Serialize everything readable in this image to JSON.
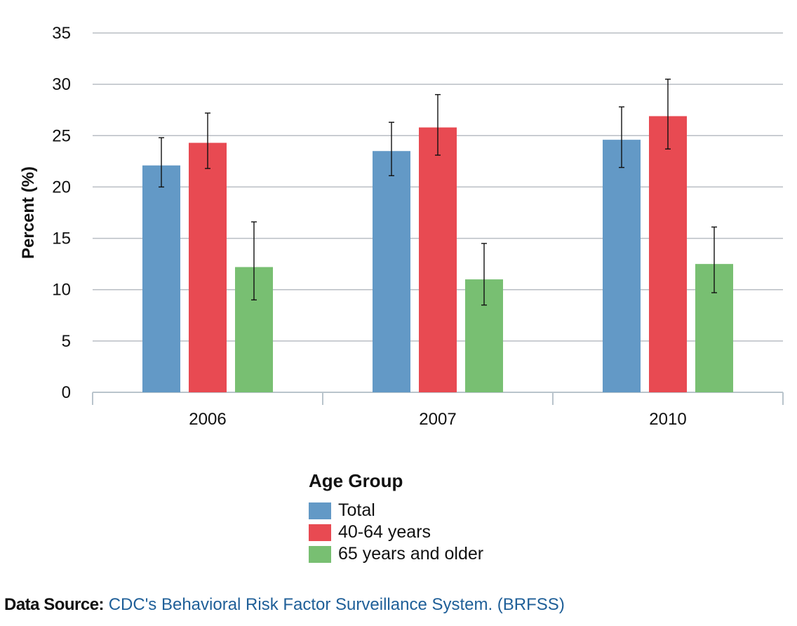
{
  "chart_data": {
    "type": "bar",
    "categories": [
      "2006",
      "2007",
      "2010"
    ],
    "ylabel": "Percent (%)",
    "xlabel": "",
    "ylim": [
      0,
      35
    ],
    "yticks": [
      0,
      5,
      10,
      15,
      20,
      25,
      30,
      35
    ],
    "grid": true,
    "legend_title": "Age Group",
    "legend_position": "bottom-center",
    "series": [
      {
        "name": "Total",
        "color": "#6399c6",
        "values": [
          22.1,
          23.5,
          24.6
        ],
        "error_low": [
          20.0,
          21.1,
          21.9
        ],
        "error_high": [
          24.8,
          26.3,
          27.8
        ]
      },
      {
        "name": "40-64 years",
        "color": "#e84a52",
        "values": [
          24.3,
          25.8,
          26.9
        ],
        "error_low": [
          21.8,
          23.1,
          23.7
        ],
        "error_high": [
          27.2,
          29.0,
          30.5
        ]
      },
      {
        "name": "65 years and older",
        "color": "#78bf72",
        "values": [
          12.2,
          11.0,
          12.5
        ],
        "error_low": [
          9.0,
          8.5,
          9.7
        ],
        "error_high": [
          16.6,
          14.5,
          16.1
        ]
      }
    ]
  },
  "footer": {
    "source_label": "Data Source:",
    "source_text": "CDC's Behavioral Risk Factor Surveillance System. (BRFSS)"
  }
}
